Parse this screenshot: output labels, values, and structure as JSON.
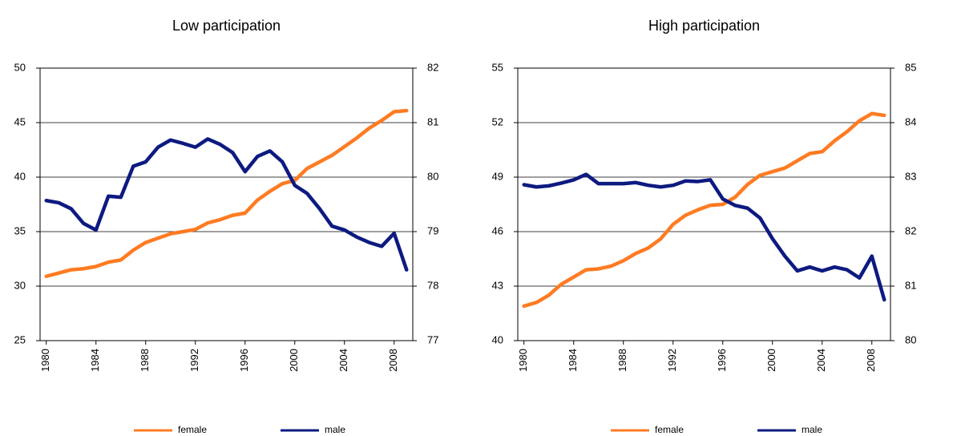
{
  "chart_data": [
    {
      "type": "line",
      "title": "Low participation",
      "x": [
        1980,
        1981,
        1982,
        1983,
        1984,
        1985,
        1986,
        1987,
        1988,
        1989,
        1990,
        1991,
        1992,
        1993,
        1994,
        1995,
        1996,
        1997,
        1998,
        1999,
        2000,
        2001,
        2002,
        2003,
        2004,
        2005,
        2006,
        2007,
        2008,
        2009
      ],
      "xlim": [
        1979.5,
        2009.5
      ],
      "xticks": [
        1980,
        1984,
        1988,
        1992,
        1996,
        2000,
        2004,
        2008
      ],
      "ylim": [
        25,
        50
      ],
      "yticks": [
        25,
        30,
        35,
        40,
        45,
        50
      ],
      "y2lim": [
        77,
        82
      ],
      "y2ticks": [
        77,
        78,
        79,
        80,
        81,
        82
      ],
      "grid": true,
      "series": [
        {
          "name": "female",
          "color": "#ff7b22",
          "axis": "y",
          "values": [
            30.9,
            31.2,
            31.5,
            31.6,
            31.8,
            32.2,
            32.4,
            33.3,
            34.0,
            34.4,
            34.8,
            35.0,
            35.2,
            35.8,
            36.1,
            36.5,
            36.7,
            37.9,
            38.7,
            39.4,
            39.7,
            40.8,
            41.4,
            42.0,
            42.8,
            43.6,
            44.5,
            45.2,
            46.0,
            46.1
          ]
        },
        {
          "name": "male",
          "color": "#0d1a80",
          "axis": "y2",
          "values": [
            79.57,
            79.53,
            79.42,
            79.15,
            79.03,
            79.65,
            79.63,
            80.2,
            80.28,
            80.55,
            80.68,
            80.62,
            80.55,
            80.7,
            80.6,
            80.45,
            80.1,
            80.38,
            80.48,
            80.28,
            79.85,
            79.7,
            79.42,
            79.1,
            79.03,
            78.9,
            78.8,
            78.73,
            78.97,
            78.3
          ]
        }
      ]
    },
    {
      "type": "line",
      "title": "High participation",
      "x": [
        1980,
        1981,
        1982,
        1983,
        1984,
        1985,
        1986,
        1987,
        1988,
        1989,
        1990,
        1991,
        1992,
        1993,
        1994,
        1995,
        1996,
        1997,
        1998,
        1999,
        2000,
        2001,
        2002,
        2003,
        2004,
        2005,
        2006,
        2007,
        2008,
        2009
      ],
      "xlim": [
        1979.5,
        2009.5
      ],
      "xticks": [
        1980,
        1984,
        1988,
        1992,
        1996,
        2000,
        2004,
        2008
      ],
      "ylim": [
        40,
        55
      ],
      "yticks": [
        40,
        43,
        46,
        49,
        52,
        55
      ],
      "y2lim": [
        80,
        85
      ],
      "y2ticks": [
        80,
        81,
        82,
        83,
        84,
        85
      ],
      "grid": true,
      "series": [
        {
          "name": "female",
          "color": "#ff7b22",
          "axis": "y",
          "values": [
            41.9,
            42.1,
            42.5,
            43.1,
            43.5,
            43.9,
            43.95,
            44.1,
            44.4,
            44.8,
            45.1,
            45.6,
            46.4,
            46.9,
            47.2,
            47.45,
            47.5,
            47.9,
            48.6,
            49.1,
            49.3,
            49.5,
            49.9,
            50.3,
            50.4,
            51.0,
            51.5,
            52.1,
            52.5,
            52.4
          ]
        },
        {
          "name": "male",
          "color": "#0d1a80",
          "axis": "y2",
          "values": [
            82.86,
            82.82,
            82.84,
            82.89,
            82.95,
            83.05,
            82.88,
            82.88,
            82.88,
            82.9,
            82.85,
            82.82,
            82.85,
            82.93,
            82.92,
            82.95,
            82.6,
            82.48,
            82.43,
            82.25,
            81.87,
            81.55,
            81.28,
            81.35,
            81.28,
            81.35,
            81.3,
            81.15,
            81.55,
            80.75
          ]
        }
      ]
    }
  ]
}
